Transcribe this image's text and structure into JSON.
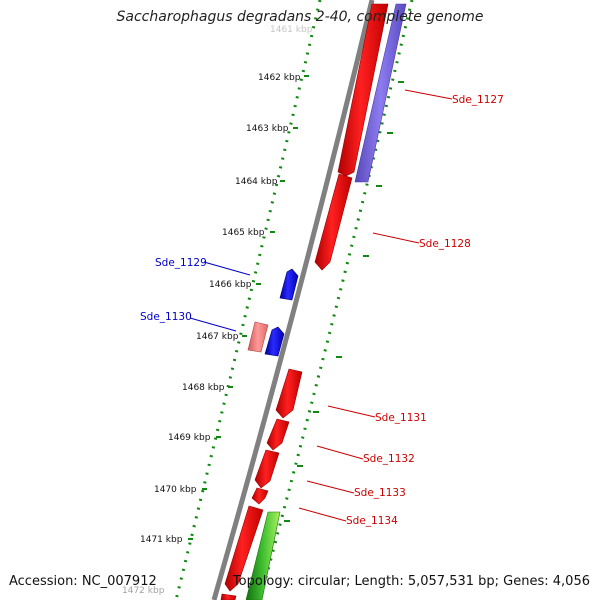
{
  "title": "Saccharophagus degradans 2-40, complete genome",
  "footer": {
    "accession": "Accession: NC_007912",
    "summary": "Topology: circular; Length: 5,057,531 bp; Genes: 4,056"
  },
  "scale_labels": [
    "1461 kbp",
    "1462 kbp",
    "1463 kbp",
    "1464 kbp",
    "1465 kbp",
    "1466 kbp",
    "1467 kbp",
    "1468 kbp",
    "1469 kbp",
    "1470 kbp",
    "1471 kbp",
    "1472 kbp"
  ],
  "gene_labels": [
    "Sde_1127",
    "Sde_1128",
    "Sde_1129",
    "Sde_1130",
    "Sde_1131",
    "Sde_1132",
    "Sde_1133",
    "Sde_1134"
  ],
  "colors": {
    "forward_gene": "#ff0000",
    "reverse_gene": "#0000ee",
    "pink_gene": "#f08080",
    "purple_track": "#7060d0",
    "green_track": "#30a020",
    "backbone": "#808080",
    "scale_dots": "#118811",
    "label_red": "#cc0000",
    "label_blue": "#0000cc"
  }
}
